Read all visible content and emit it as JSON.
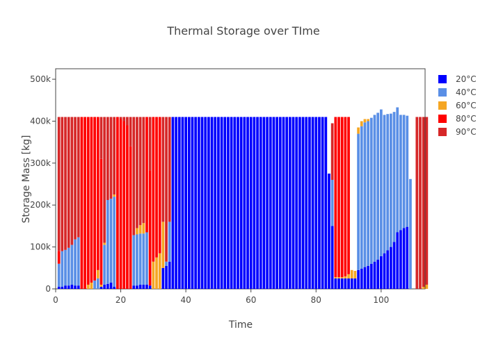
{
  "chart_data": {
    "type": "bar",
    "stacked": true,
    "title": "Thermal Storage over  TIme",
    "xlabel": "Time",
    "ylabel": "Storage Mass [kg]",
    "xlim": [
      0,
      113.5
    ],
    "ylim": [
      0,
      525000
    ],
    "x_ticks": [
      0,
      20,
      40,
      60,
      80,
      100
    ],
    "y_ticks": [
      0,
      100000,
      200000,
      300000,
      400000,
      500000
    ],
    "y_tick_labels": [
      "0",
      "100k",
      "200k",
      "300k",
      "400k",
      "500k"
    ],
    "x_tick_labels": [
      "0",
      "20",
      "40",
      "60",
      "80",
      "100"
    ],
    "total": 410000,
    "grid": false,
    "legend_position": "right",
    "series": [
      {
        "name": "20°C",
        "color": "#0000ff",
        "values": [
          5000,
          5000,
          8000,
          8000,
          10000,
          8000,
          8000,
          0,
          0,
          0,
          0,
          0,
          0,
          5000,
          10000,
          12000,
          15000,
          5000,
          0,
          0,
          0,
          0,
          0,
          8000,
          8000,
          10000,
          10000,
          10000,
          8000,
          0,
          0,
          0,
          50000,
          55000,
          65000,
          410000,
          410000,
          410000,
          410000,
          410000,
          410000,
          410000,
          410000,
          410000,
          410000,
          410000,
          410000,
          410000,
          410000,
          410000,
          410000,
          410000,
          410000,
          410000,
          410000,
          410000,
          410000,
          410000,
          410000,
          410000,
          410000,
          410000,
          410000,
          410000,
          410000,
          410000,
          410000,
          410000,
          410000,
          410000,
          410000,
          410000,
          410000,
          410000,
          410000,
          410000,
          410000,
          410000,
          410000,
          410000,
          410000,
          410000,
          410000,
          275000,
          150000,
          25000,
          25000,
          25000,
          25000,
          25000,
          25000,
          25000,
          45000,
          48000,
          52000,
          55000,
          60000,
          65000,
          70000,
          78000,
          85000,
          92000,
          100000,
          112000,
          135000,
          140000,
          145000,
          148000,
          0,
          0,
          0,
          0,
          0,
          0
        ]
      },
      {
        "name": "40°C",
        "color": "#5a8fe6",
        "values": [
          55000,
          85000,
          85000,
          90000,
          95000,
          110000,
          115000,
          0,
          0,
          0,
          0,
          20000,
          25000,
          0,
          95000,
          200000,
          200000,
          215000,
          0,
          0,
          0,
          0,
          0,
          120000,
          122000,
          122000,
          122000,
          125000,
          0,
          0,
          0,
          0,
          0,
          10000,
          95000,
          0,
          0,
          0,
          0,
          0,
          0,
          0,
          0,
          0,
          0,
          0,
          0,
          0,
          0,
          0,
          0,
          0,
          0,
          0,
          0,
          0,
          0,
          0,
          0,
          0,
          0,
          0,
          0,
          0,
          0,
          0,
          0,
          0,
          0,
          0,
          0,
          0,
          0,
          0,
          0,
          0,
          0,
          0,
          0,
          0,
          0,
          0,
          0,
          0,
          110000,
          0,
          0,
          0,
          0,
          0,
          0,
          0,
          325000,
          340000,
          345000,
          345000,
          348000,
          350000,
          350000,
          350000,
          330000,
          325000,
          318000,
          310000,
          298000,
          275000,
          270000,
          265000,
          262000,
          0,
          0,
          0,
          0,
          0,
          0
        ]
      },
      {
        "name": "60°C",
        "color": "#f5a623",
        "values": [
          0,
          0,
          0,
          0,
          0,
          0,
          0,
          0,
          0,
          10000,
          15000,
          0,
          20000,
          5000,
          5000,
          0,
          0,
          5000,
          0,
          0,
          0,
          0,
          0,
          0,
          15000,
          20000,
          25000,
          0,
          0,
          65000,
          75000,
          85000,
          110000,
          0,
          0,
          0,
          0,
          0,
          0,
          0,
          0,
          0,
          0,
          0,
          0,
          0,
          0,
          0,
          0,
          0,
          0,
          0,
          0,
          0,
          0,
          0,
          0,
          0,
          0,
          0,
          0,
          0,
          0,
          0,
          0,
          0,
          0,
          0,
          0,
          0,
          0,
          0,
          0,
          0,
          0,
          0,
          0,
          0,
          0,
          0,
          0,
          0,
          0,
          0,
          0,
          3000,
          3000,
          3000,
          5000,
          10000,
          20000,
          18000,
          15000,
          12000,
          8000,
          5000,
          0,
          0,
          0,
          0,
          0,
          0,
          0,
          0,
          0,
          0,
          0,
          0,
          0,
          0,
          0,
          0,
          5000,
          10000,
          12000
        ]
      },
      {
        "name": "80°C",
        "color": "#ff0000",
        "values": [
          30000,
          0,
          0,
          0,
          0,
          0,
          0,
          410000,
          410000,
          400000,
          395000,
          390000,
          365000,
          300000,
          0,
          0,
          0,
          0,
          410000,
          405000,
          400000,
          390000,
          340000,
          0,
          0,
          0,
          0,
          275000,
          275000,
          345000,
          335000,
          325000,
          0,
          0,
          0,
          0,
          0,
          0,
          0,
          0,
          0,
          0,
          0,
          0,
          0,
          0,
          0,
          0,
          0,
          0,
          0,
          0,
          0,
          0,
          0,
          0,
          0,
          0,
          0,
          0,
          0,
          0,
          0,
          0,
          0,
          0,
          0,
          0,
          0,
          0,
          0,
          0,
          0,
          0,
          0,
          0,
          0,
          0,
          0,
          0,
          0,
          0,
          0,
          0,
          0,
          382000,
          382000,
          382000,
          380000,
          375000,
          0,
          0,
          0,
          0,
          0,
          0,
          0,
          0,
          0,
          0,
          0,
          0,
          0,
          0,
          0,
          0,
          0,
          0,
          0,
          0,
          0,
          0,
          0,
          0
        ]
      },
      {
        "name": "90°C",
        "color": "#d62728",
        "values": [
          320000,
          320000,
          317000,
          312000,
          305000,
          292000,
          287000,
          0,
          0,
          0,
          0,
          0,
          0,
          100000,
          300000,
          198000,
          195000,
          185000,
          0,
          5000,
          10000,
          20000,
          70000,
          282000,
          265000,
          258000,
          253000,
          0,
          127000,
          0,
          0,
          0,
          250000,
          345000,
          250000,
          0,
          0,
          0,
          0,
          0,
          0,
          0,
          0,
          0,
          0,
          0,
          0,
          0,
          0,
          0,
          0,
          0,
          0,
          0,
          0,
          0,
          0,
          0,
          0,
          0,
          0,
          0,
          0,
          0,
          0,
          0,
          0,
          0,
          0,
          0,
          0,
          0,
          0,
          0,
          0,
          0,
          0,
          0,
          0,
          0,
          0,
          0,
          0,
          0,
          135000,
          0,
          0,
          0,
          0,
          0,
          0,
          0,
          0,
          0,
          0,
          0,
          0,
          0,
          0,
          0,
          0,
          0,
          0,
          0,
          0,
          0,
          0,
          0,
          0,
          0,
          410000,
          410000,
          405000,
          400000,
          398000
        ]
      }
    ]
  }
}
